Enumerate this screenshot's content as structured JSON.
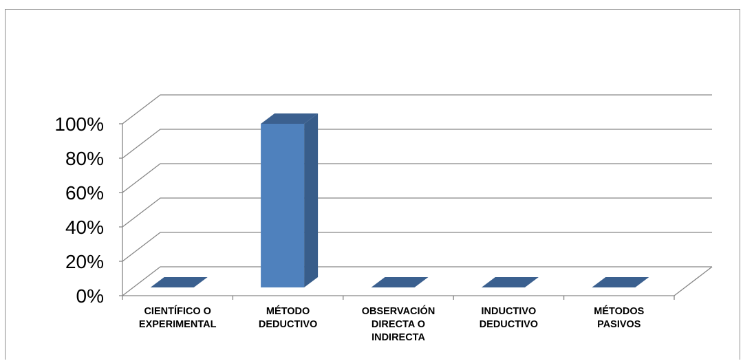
{
  "chart_data": {
    "type": "bar",
    "categories": [
      [
        "CIENTÍFICO O",
        "EXPERIMENTAL"
      ],
      [
        "MÉTODO",
        "DEDUCTIVO"
      ],
      [
        "OBSERVACIÓN",
        "DIRECTA O",
        "INDIRECTA"
      ],
      [
        "INDUCTIVO",
        "DEDUCTIVO"
      ],
      [
        "MÉTODOS",
        "PASIVOS"
      ]
    ],
    "values": [
      0,
      1.0,
      0,
      0,
      0
    ],
    "ylim": [
      0,
      1.0
    ],
    "yticks": [
      "0%",
      "20%",
      "40%",
      "60%",
      "80%",
      "100%"
    ],
    "grid": true,
    "style": "3d-column",
    "colors": {
      "bar_front": "#4f81bd",
      "bar_side": "#385d8a",
      "bar_top": "#3b608f",
      "grid": "#868686"
    }
  }
}
